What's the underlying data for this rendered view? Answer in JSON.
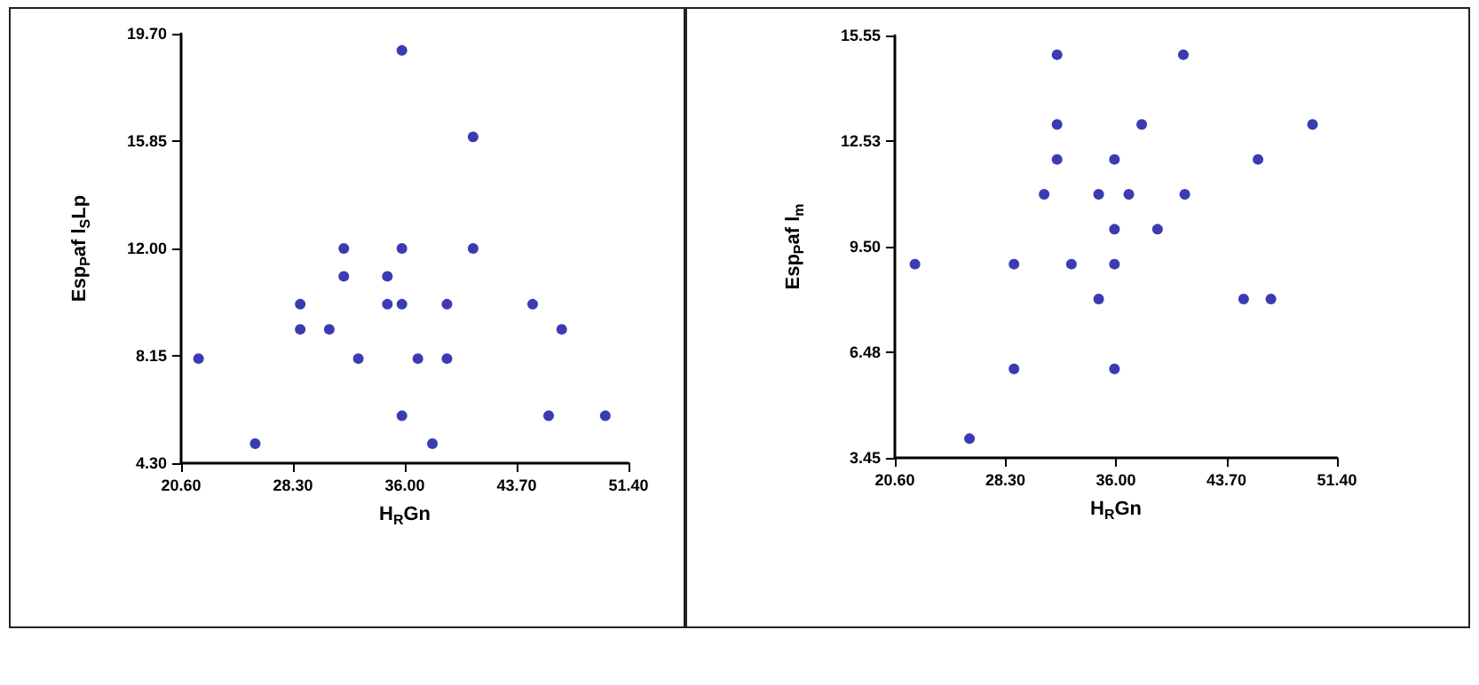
{
  "chart_data": [
    {
      "type": "scatter",
      "xlabel": "H$_{R}$Gn",
      "ylabel": "Esp$_{P}$af l$_{S}$Lp",
      "color": "#0a0aa0",
      "marker": "circle",
      "x": [
        35.8,
        40.7,
        31.8,
        35.8,
        40.7,
        31.8,
        34.8,
        28.8,
        34.8,
        35.8,
        38.9,
        44.8,
        28.8,
        30.8,
        46.8,
        21.8,
        32.8,
        36.9,
        38.9,
        35.8,
        45.9,
        49.8,
        25.7,
        37.9
      ],
      "values": [
        19.1,
        16.0,
        12.0,
        12.0,
        12.0,
        11.0,
        11.0,
        10.0,
        10.0,
        10.0,
        10.0,
        10.0,
        9.1,
        9.1,
        9.1,
        8.05,
        8.05,
        8.05,
        8.05,
        6.0,
        6.0,
        6.0,
        5.0,
        5.0
      ],
      "xlim": [
        20.6,
        51.4
      ],
      "xticks": [
        {
          "value": 20.6,
          "label": "20.60"
        },
        {
          "value": 28.3,
          "label": "28.30"
        },
        {
          "value": 36.0,
          "label": "36.00"
        },
        {
          "value": 43.7,
          "label": "43.70"
        },
        {
          "value": 51.4,
          "label": "51.40"
        }
      ],
      "ylim": [
        4.3,
        19.7
      ],
      "yticks": [
        {
          "value": 4.3,
          "label": "4.30"
        },
        {
          "value": 8.15,
          "label": "8.15"
        },
        {
          "value": 12.0,
          "label": "12.00"
        },
        {
          "value": 15.85,
          "label": "15.85"
        },
        {
          "value": 19.7,
          "label": "19.70"
        }
      ]
    },
    {
      "type": "scatter",
      "xlabel": "H$_{R}$Gn",
      "ylabel": "Esp$_{P}$af l$_{m}$",
      "color": "#0a0aa0",
      "marker": "circle",
      "x": [
        31.9,
        40.7,
        31.9,
        37.8,
        49.7,
        31.9,
        35.9,
        45.9,
        31.0,
        34.8,
        36.9,
        40.8,
        35.9,
        38.9,
        22.0,
        28.9,
        32.9,
        35.9,
        34.8,
        44.9,
        46.8,
        28.9,
        35.9,
        25.8
      ],
      "values": [
        15.0,
        15.0,
        13.0,
        13.0,
        13.0,
        12.0,
        12.0,
        12.0,
        11.0,
        11.0,
        11.0,
        11.0,
        10.0,
        10.0,
        9.0,
        9.0,
        9.0,
        9.0,
        8.0,
        8.0,
        8.0,
        6.0,
        6.0,
        4.0
      ],
      "xlim": [
        20.6,
        51.4
      ],
      "xticks": [
        {
          "value": 20.6,
          "label": "20.60"
        },
        {
          "value": 28.3,
          "label": "28.30"
        },
        {
          "value": 36.0,
          "label": "36.00"
        },
        {
          "value": 43.7,
          "label": "43.70"
        },
        {
          "value": 51.4,
          "label": "51.40"
        }
      ],
      "ylim": [
        3.45,
        15.55
      ],
      "yticks": [
        {
          "value": 3.45,
          "label": "3.45"
        },
        {
          "value": 6.48,
          "label": "6.48"
        },
        {
          "value": 9.5,
          "label": "9.50"
        },
        {
          "value": 12.53,
          "label": "12.53"
        },
        {
          "value": 15.55,
          "label": "15.55"
        }
      ]
    }
  ]
}
